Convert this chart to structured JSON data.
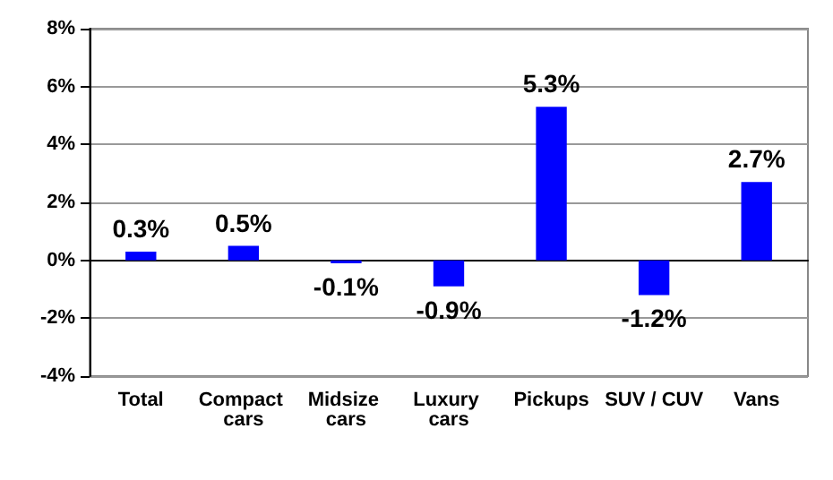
{
  "chart_data": {
    "type": "bar",
    "categories": [
      "Total",
      "Compact cars",
      "Midsize cars",
      "Luxury cars",
      "Pickups",
      "SUV / CUV",
      "Vans"
    ],
    "values": [
      0.3,
      0.5,
      -0.1,
      -0.9,
      5.3,
      -1.2,
      2.7
    ],
    "value_labels": [
      "0.3%",
      "0.5%",
      "-0.1%",
      "-0.9%",
      "5.3%",
      "-1.2%",
      "2.7%"
    ],
    "color": "#0000ff",
    "ylim": [
      -4,
      8
    ],
    "yticks": [
      {
        "value": -4,
        "label": "-4%"
      },
      {
        "value": -2,
        "label": "-2%"
      },
      {
        "value": 0,
        "label": "0%"
      },
      {
        "value": 2,
        "label": "2%"
      },
      {
        "value": 4,
        "label": "4%"
      },
      {
        "value": 6,
        "label": "6%"
      },
      {
        "value": 8,
        "label": "8%"
      }
    ],
    "grid": "y"
  }
}
